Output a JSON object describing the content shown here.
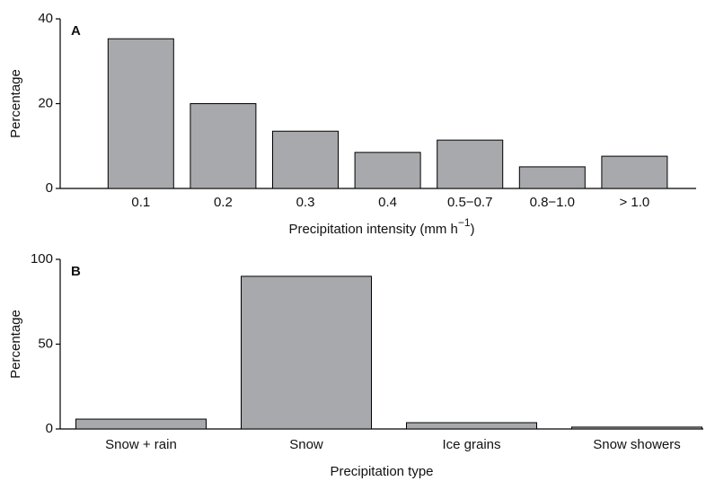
{
  "chart_data": [
    {
      "type": "bar",
      "panel_label": "A",
      "y_label": "Percentage",
      "x_label_parts": [
        "Precipitation intensity (mm h",
        "−1",
        ")"
      ],
      "categories": [
        "0.1",
        "0.2",
        "0.3",
        "0.4",
        "0.5−0.7",
        "0.8−1.0",
        "> 1.0"
      ],
      "values": [
        35.3,
        20,
        13.5,
        8.5,
        11.4,
        5.1,
        7.6
      ],
      "color": "#a7a9ac",
      "ylim": [
        0,
        40
      ],
      "yticks": [
        0,
        20,
        40
      ]
    },
    {
      "type": "bar",
      "panel_label": "B",
      "y_label": "Percentage",
      "x_label_parts": [
        "Precipitation type"
      ],
      "categories": [
        "Snow + rain",
        "Snow",
        "Ice grains",
        "Snow showers"
      ],
      "values": [
        5.8,
        90,
        3.7,
        1.1
      ],
      "color": "#a7a9ac",
      "ylim": [
        0,
        100
      ],
      "yticks": [
        0,
        50,
        100
      ]
    }
  ]
}
